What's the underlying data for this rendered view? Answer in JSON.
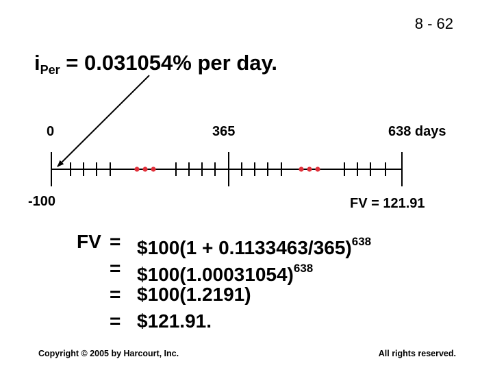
{
  "slide_number": "8 - 62",
  "rate": {
    "prefix": "i",
    "subscript": "Per",
    "rest": " = 0.031054% per day."
  },
  "timeline": {
    "start_label": "0",
    "mid_label": "365",
    "end_label": "638 days",
    "pv_label": "-100",
    "fv_label": "FV = 121.91",
    "line_color": "#000000",
    "dot_color": "#e0303a"
  },
  "formula": {
    "lhs": "FV",
    "lines": [
      {
        "eq": "=",
        "text": "$100(1 + 0.1133463/365)",
        "exp": "638"
      },
      {
        "eq": "=",
        "text": "$100(1.00031054)",
        "exp": "638"
      },
      {
        "eq": "=",
        "text": "$100(1.2191)",
        "exp": ""
      },
      {
        "eq": "=",
        "text": "$121.91.",
        "exp": ""
      }
    ]
  },
  "footer": {
    "copyright": "Copyright © 2005 by Harcourt, Inc.",
    "rights": "All rights reserved."
  }
}
